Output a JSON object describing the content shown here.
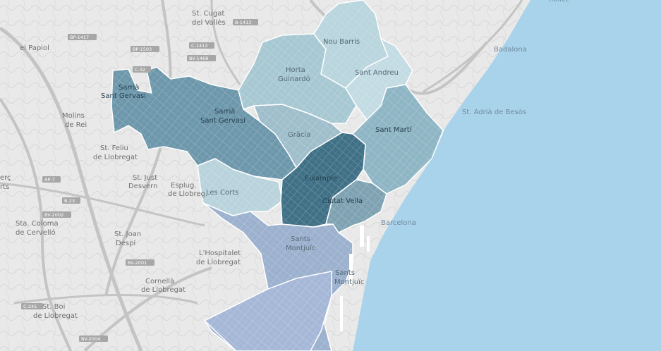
{
  "colors": {
    "sea": "#a9d3ea",
    "land": "#e9e9e9",
    "road": "#c9c9c9",
    "district_stroke": "#ffffff",
    "choropleth_low": "#c7dde6",
    "choropleth_high": "#3f7086",
    "port_area": "#a6b8d8"
  },
  "districts": [
    {
      "name": "Nou Barris",
      "intensity": 0.3
    },
    {
      "name": "Horta\nGuinardó",
      "intensity": 0.4
    },
    {
      "name": "Sant Andreu",
      "intensity": 0.3
    },
    {
      "name": "Sarrià\nSant Gervasi",
      "intensity": 0.65
    },
    {
      "name": "Gràcia",
      "intensity": 0.45
    },
    {
      "name": "Sant Martí",
      "intensity": 0.5
    },
    {
      "name": "Eixample",
      "intensity": 0.95
    },
    {
      "name": "Les Corts",
      "intensity": 0.35
    },
    {
      "name": "Ciutat Vella",
      "intensity": 0.6
    },
    {
      "name": "Sants\nMontjuïc",
      "intensity": 0.45
    }
  ],
  "district_labels": {
    "nou_barris": "Nou Barris",
    "horta_1": "Horta",
    "horta_2": "Guinardó",
    "sant_andreu": "Sant Andreu",
    "sarria_1": "Sarrià",
    "sarria_2": "Sant Gervasi",
    "sarria_small_1": "Sarrià",
    "sarria_small_2": "Sant Gervasi",
    "gracia": "Gràcia",
    "sant_marti": "Sant Martí",
    "eixample": "Eixample",
    "les_corts": "Les Corts",
    "ciutat_vella": "Ciutat Vella",
    "sants_1": "Sants",
    "sants_2": "Montjuïc",
    "montjuic_1": "Sants",
    "montjuic_2": "Montjuïc"
  },
  "place_labels": {
    "st_cugat_1": "St. Cugat",
    "st_cugat_2": "del Vallès",
    "el_papiol": "el Papiol",
    "molins_1": "Molins",
    "molins_2": "de Rei",
    "st_feliu_1": "St. Feliu",
    "st_feliu_2": "de Llobregat",
    "st_just_1": "St. Just",
    "st_just_2": "Desvern",
    "esplugues_1": "Esplug.",
    "esplugues_2": "de Llobreg.",
    "sta_coloma_1": "Sta. Coloma",
    "sta_coloma_2": "de Cervelló",
    "st_joan_1": "St. Joan",
    "st_joan_2": "Despí",
    "hospitalet_1": "L'Hospitalet",
    "hospitalet_2": "de Llobregat",
    "cornella_1": "Cornellà",
    "cornella_2": "de Llobregat",
    "st_boi_1": "St. Boi",
    "st_boi_2": "de Llobregat",
    "cerc_1": "erç",
    "cerc_2": "rts",
    "badalona": "Badalona",
    "st_adria": "St. Adrià de Besòs",
    "barcelona": "Barcelona",
    "top_right": "nollet"
  },
  "road_shields": [
    "B-1413",
    "BP-1503",
    "C-1413",
    "BV-1468",
    "BP-1417",
    "AP-7",
    "B-23",
    "C-32",
    "BV-2002",
    "BV-2001",
    "C-245",
    "BV-2004"
  ]
}
